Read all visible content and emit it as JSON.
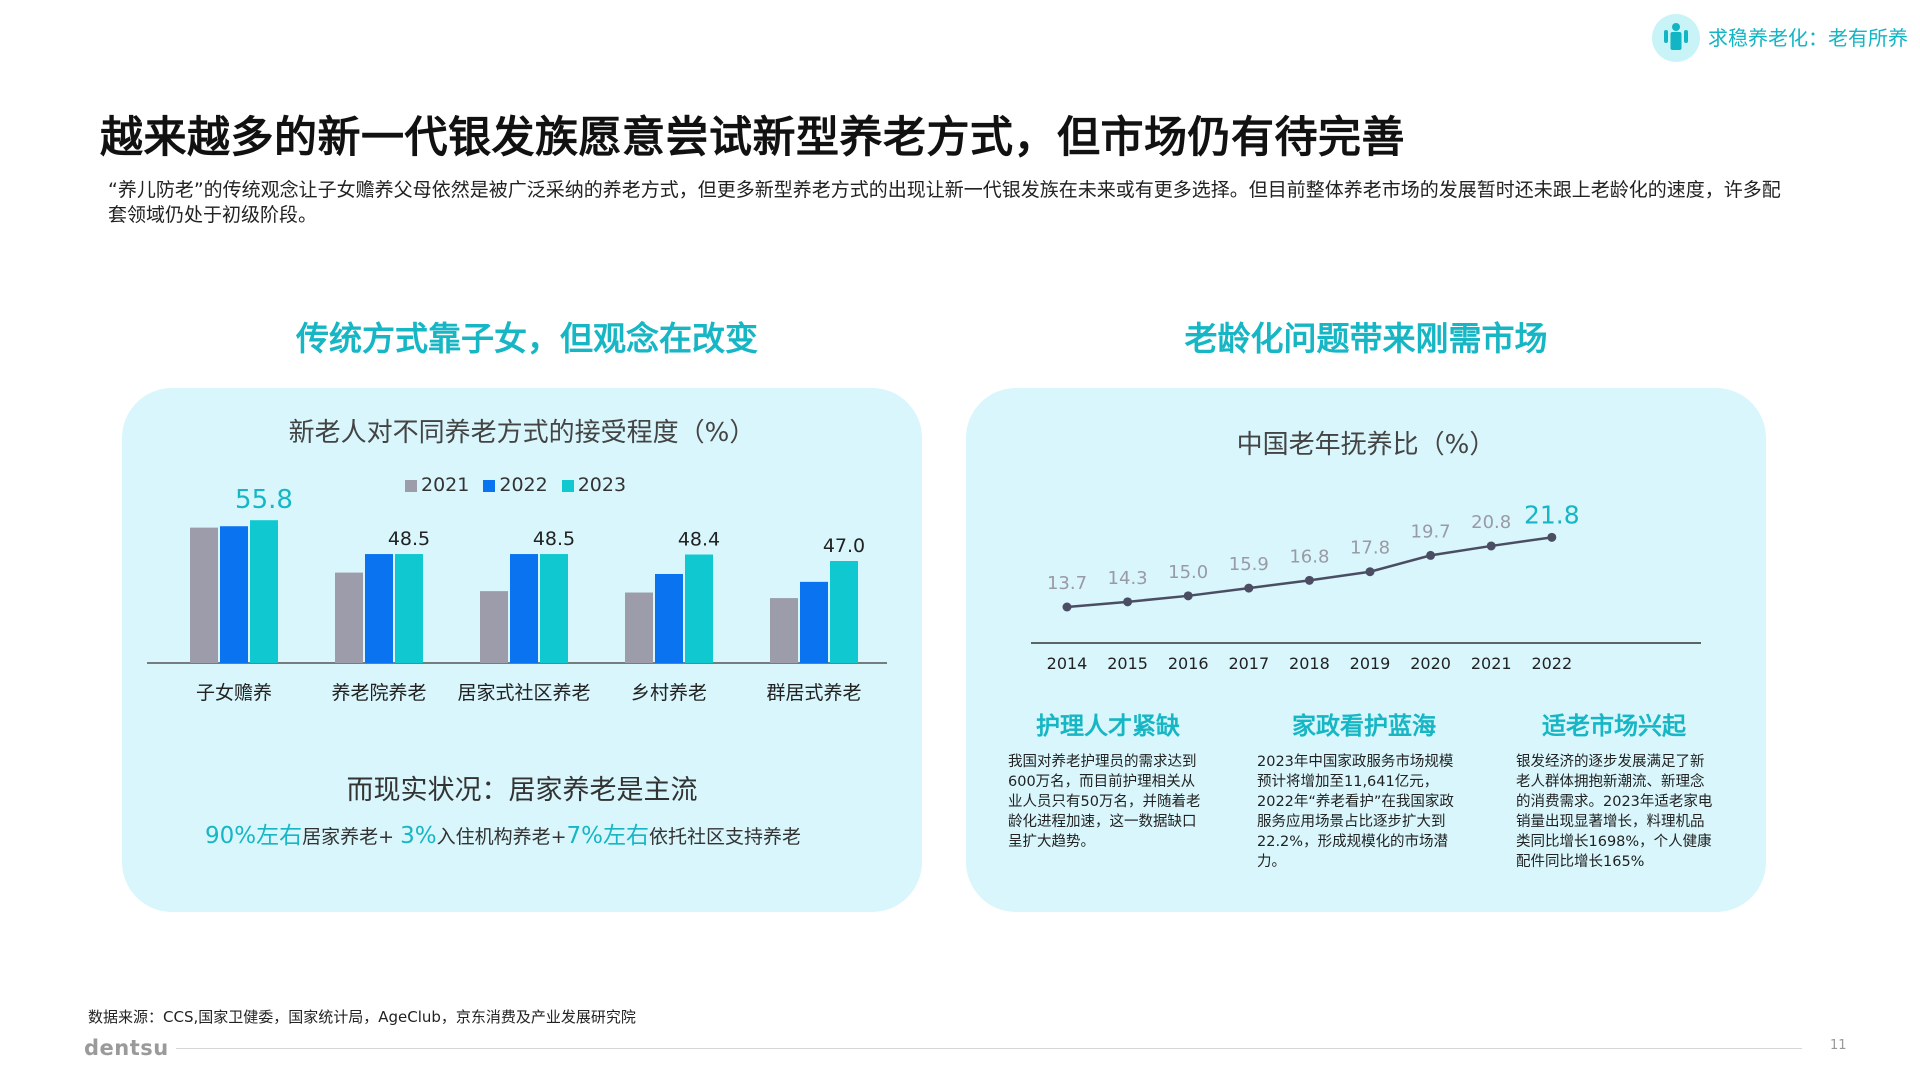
{
  "header": {
    "badge": "求稳养老化：老有所养"
  },
  "title": "越来越多的新一代银发族愿意尝试新型养老方式，但市场仍有待完善",
  "subtitle": "“养儿防老”的传统观念让子女赡养父母依然是被广泛采纳的养老方式，但更多新型养老方式的出现让新一代银发族在未来或有更多选择。但目前整体养老市场的发展暂时还未跟上老龄化的速度，许多配套领域仍处于初级阶段。",
  "left": {
    "heading": "传统方式靠子女，但观念在改变",
    "reality_heading": "而现实状况：居家养老是主流",
    "reality": {
      "p1": "90%左右",
      "t1": "居家养老+ ",
      "p2": "3%",
      "t2": "入住机构养老+",
      "p3": "7%左右",
      "t3": "依托社区支持养老"
    }
  },
  "right": {
    "heading": "老龄化问题带来刚需市场",
    "cards": [
      {
        "title": "护理人才紧缺",
        "text": "我国对养老护理员的需求达到600万名，而目前护理相关从业人员只有50万名，并随着老龄化进程加速，这一数据缺口呈扩大趋势。"
      },
      {
        "title": "家政看护蓝海",
        "text": "2023年中国家政服务市场规模预计将增加至11,641亿元，2022年“养老看护”在我国家政服务应用场景占比逐步扩大到22.2%，形成规模化的市场潜力。"
      },
      {
        "title": "适老市场兴起",
        "text": "银发经济的逐步发展满足了新老人群体拥抱新潮流、新理念的消费需求。2023年适老家电销量出现显著增长，料理机品类同比增长1698%，个人健康配件同比增长165%"
      }
    ]
  },
  "colors": {
    "c2021": "#9d9cab",
    "c2022": "#0a74f0",
    "c2023": "#10c8cf",
    "accent": "#17b6c5",
    "line": "#4b4e63"
  },
  "chart_data": [
    {
      "type": "bar",
      "title": "新老人对不同养老方式的接受程度（%）",
      "categories": [
        "子女赡养",
        "养老院养老",
        "居家式社区养老",
        "乡村养老",
        "群居式养老"
      ],
      "series": [
        {
          "name": "2021",
          "values": [
            54.2,
            44.5,
            40.5,
            40.2,
            39.0
          ]
        },
        {
          "name": "2022",
          "values": [
            54.5,
            48.5,
            48.5,
            44.2,
            42.5
          ]
        },
        {
          "name": "2023",
          "values": [
            55.8,
            48.5,
            48.5,
            48.4,
            47.0
          ]
        }
      ],
      "labels": [
        "55.8",
        "48.5",
        "48.5",
        "48.4",
        "47.0"
      ],
      "ylim": [
        25,
        58
      ]
    },
    {
      "type": "line",
      "title": "中国老年抚养比（%）",
      "x": [
        "2014",
        "2015",
        "2016",
        "2017",
        "2018",
        "2019",
        "2020",
        "2021",
        "2022"
      ],
      "y": [
        13.7,
        14.3,
        15.0,
        15.9,
        16.8,
        17.8,
        19.7,
        20.8,
        21.8
      ],
      "ylim": [
        10,
        23
      ]
    }
  ],
  "footer": {
    "source": "数据来源：CCS,国家卫健委，国家统计局，AgeClub，京东消费及产业发展研究院",
    "brand": "dentsu",
    "page": "11"
  }
}
